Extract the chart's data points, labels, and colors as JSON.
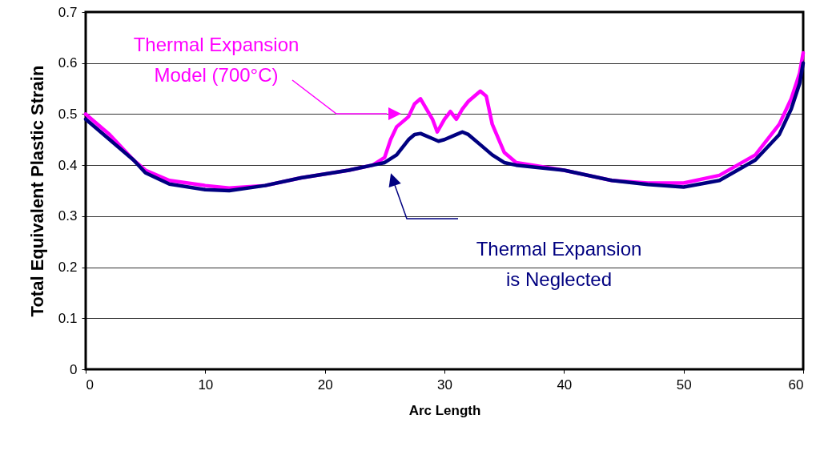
{
  "chart_data": {
    "type": "line",
    "xlabel": "Arc Length",
    "ylabel": "Total Equivalent Plastic Strain",
    "xlim": [
      0,
      60
    ],
    "xticks": [
      0,
      10,
      20,
      30,
      40,
      50,
      60
    ],
    "ylim": [
      0,
      0.7
    ],
    "yticks": [
      0,
      0.1,
      0.2,
      0.3,
      0.4,
      0.5,
      0.6,
      0.7
    ],
    "grid": "y",
    "line_style": "solid",
    "series": [
      {
        "color": "#ff00ff",
        "x": [
          0,
          2,
          4,
          5,
          7,
          10,
          12,
          15,
          18,
          22,
          24,
          25,
          25.5,
          26,
          27,
          27.5,
          28,
          28.5,
          29,
          29.4,
          30,
          30.5,
          31,
          31.5,
          32,
          33,
          33.5,
          34,
          35,
          36,
          40,
          44,
          47,
          50,
          53,
          56,
          58,
          59,
          59.7,
          60
        ],
        "values": [
          0.5,
          0.46,
          0.41,
          0.39,
          0.37,
          0.36,
          0.355,
          0.36,
          0.375,
          0.39,
          0.4,
          0.415,
          0.45,
          0.475,
          0.495,
          0.52,
          0.53,
          0.51,
          0.49,
          0.465,
          0.49,
          0.505,
          0.49,
          0.51,
          0.525,
          0.545,
          0.535,
          0.48,
          0.425,
          0.405,
          0.39,
          0.37,
          0.365,
          0.365,
          0.38,
          0.42,
          0.48,
          0.53,
          0.58,
          0.62
        ]
      },
      {
        "color": "#000080",
        "x": [
          0,
          2,
          4,
          5,
          7,
          10,
          12,
          15,
          18,
          22,
          24,
          25,
          26,
          27,
          27.5,
          28,
          29,
          29.5,
          30,
          31,
          31.5,
          32,
          33,
          34,
          35,
          36,
          40,
          44,
          47,
          50,
          53,
          56,
          58,
          59,
          59.7,
          60
        ],
        "values": [
          0.49,
          0.45,
          0.41,
          0.385,
          0.363,
          0.352,
          0.35,
          0.36,
          0.375,
          0.39,
          0.4,
          0.405,
          0.42,
          0.45,
          0.46,
          0.462,
          0.452,
          0.447,
          0.45,
          0.46,
          0.465,
          0.46,
          0.44,
          0.42,
          0.405,
          0.4,
          0.39,
          0.37,
          0.362,
          0.357,
          0.37,
          0.41,
          0.46,
          0.51,
          0.56,
          0.6
        ]
      }
    ],
    "annotations": [
      "Thermal Expansion\nModel (700°C)",
      "Thermal Expansion\nis Neglected"
    ]
  }
}
